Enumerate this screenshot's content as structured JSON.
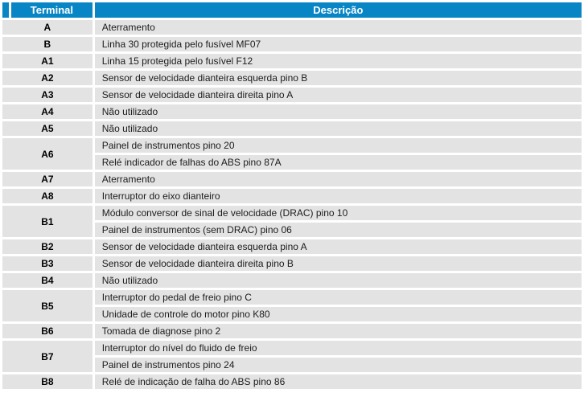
{
  "table": {
    "columns": {
      "terminal": "Terminal",
      "descricao": "Descrição"
    },
    "rows": [
      {
        "terminal": "A",
        "descriptions": [
          "Aterramento"
        ]
      },
      {
        "terminal": "B",
        "descriptions": [
          "Linha 30 protegida pelo fusível MF07"
        ]
      },
      {
        "terminal": "A1",
        "descriptions": [
          "Linha 15 protegida pelo fusível F12"
        ]
      },
      {
        "terminal": "A2",
        "descriptions": [
          "Sensor de velocidade dianteira esquerda pino B"
        ]
      },
      {
        "terminal": "A3",
        "descriptions": [
          "Sensor de velocidade dianteira direita pino A"
        ]
      },
      {
        "terminal": "A4",
        "descriptions": [
          "Não utilizado"
        ]
      },
      {
        "terminal": "A5",
        "descriptions": [
          "Não utilizado"
        ]
      },
      {
        "terminal": "A6",
        "descriptions": [
          "Painel de instrumentos pino 20",
          "Relé indicador de falhas do ABS pino 87A"
        ]
      },
      {
        "terminal": "A7",
        "descriptions": [
          "Aterramento"
        ]
      },
      {
        "terminal": "A8",
        "descriptions": [
          "Interruptor do eixo dianteiro"
        ]
      },
      {
        "terminal": "B1",
        "descriptions": [
          "Módulo conversor de sinal de velocidade (DRAC) pino 10",
          "Painel de instrumentos (sem DRAC) pino 06"
        ]
      },
      {
        "terminal": "B2",
        "descriptions": [
          "Sensor de velocidade dianteira esquerda pino A"
        ]
      },
      {
        "terminal": "B3",
        "descriptions": [
          "Sensor de velocidade dianteira direita pino B"
        ]
      },
      {
        "terminal": "B4",
        "descriptions": [
          "Não utilizado"
        ]
      },
      {
        "terminal": "B5",
        "descriptions": [
          "Interruptor do pedal de freio pino C",
          "Unidade de controle do motor pino K80"
        ]
      },
      {
        "terminal": "B6",
        "descriptions": [
          "Tomada de diagnose pino 2"
        ]
      },
      {
        "terminal": "B7",
        "descriptions": [
          "Interruptor do nível do fluido de freio",
          "Painel de instrumentos pino 24"
        ]
      },
      {
        "terminal": "B8",
        "descriptions": [
          "Relé de indicação de falha do ABS pino 86"
        ]
      }
    ],
    "colors": {
      "header_bg": "#0885c5",
      "header_text": "#ffffff",
      "row_bg": "#e3e3e3",
      "gap": "#ffffff"
    }
  }
}
